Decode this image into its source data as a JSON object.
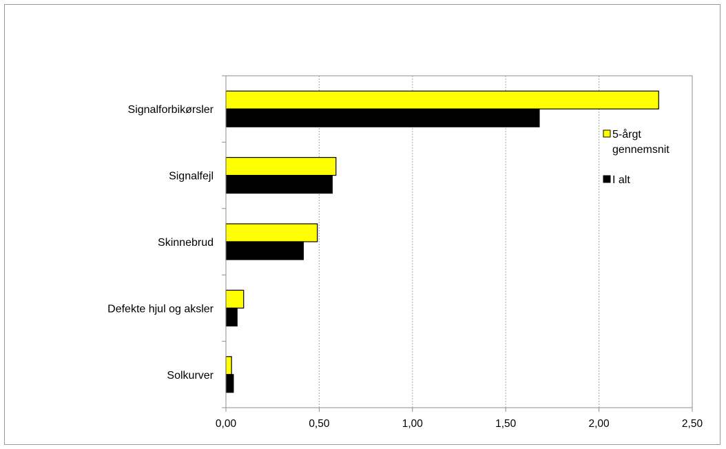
{
  "chart_data": {
    "type": "bar",
    "orientation": "horizontal",
    "categories": [
      "Signalforbikørsler",
      "Signalfejl",
      "Skinnebrud",
      "Defekte hjul og aksler",
      "Solkurver"
    ],
    "series": [
      {
        "name": "5-årgt gennemsnit",
        "legend_lines": [
          "5-årgt",
          "gennemsnit"
        ],
        "color": "#ffff00",
        "values": [
          2.32,
          0.59,
          0.49,
          0.095,
          0.03
        ]
      },
      {
        "name": "I alt",
        "legend_lines": [
          "I alt"
        ],
        "color": "#000000",
        "values": [
          1.68,
          0.57,
          0.415,
          0.06,
          0.04
        ]
      }
    ],
    "xlim": [
      0,
      2.5
    ],
    "xticks": [
      0,
      0.5,
      1.0,
      1.5,
      2.0,
      2.5
    ],
    "xtick_labels": [
      "0,00",
      "0,50",
      "1,00",
      "1,50",
      "2,00",
      "2,50"
    ],
    "grid": true,
    "legend_position": "right",
    "title": "",
    "xlabel": "",
    "ylabel": ""
  }
}
